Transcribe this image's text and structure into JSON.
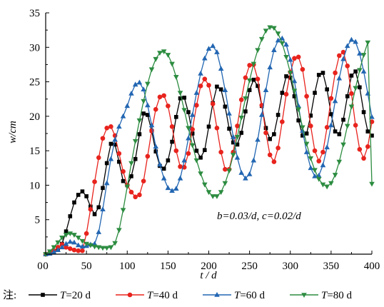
{
  "chart_data": {
    "type": "line",
    "xlabel": "t / d",
    "ylabel": "w/cm",
    "xlim": [
      0,
      400
    ],
    "ylim": [
      0,
      35
    ],
    "xticks": [
      0,
      50,
      100,
      150,
      200,
      250,
      300,
      350,
      400
    ],
    "yticks": [
      5,
      10,
      15,
      20,
      25,
      30,
      35
    ],
    "grid": false,
    "annotation": "b=0.03/d, c=0.02/d",
    "legend_prefix": "注:",
    "legend_position": "bottom",
    "series": [
      {
        "name": "T=20 d",
        "color": "#000000",
        "marker": "square",
        "x": [
          0,
          5,
          10,
          15,
          20,
          25,
          30,
          35,
          40,
          45,
          50,
          55,
          60,
          65,
          70,
          75,
          80,
          85,
          90,
          95,
          100,
          105,
          110,
          115,
          120,
          125,
          130,
          135,
          140,
          145,
          150,
          155,
          160,
          165,
          170,
          175,
          180,
          185,
          190,
          195,
          200,
          205,
          210,
          215,
          220,
          225,
          230,
          235,
          240,
          245,
          250,
          255,
          260,
          265,
          270,
          275,
          280,
          285,
          290,
          295,
          300,
          305,
          310,
          315,
          320,
          325,
          330,
          335,
          340,
          345,
          350,
          355,
          360,
          365,
          370,
          375,
          380,
          385,
          390,
          395,
          400
        ],
        "y": [
          0,
          0.1,
          0.3,
          0.8,
          1.5,
          3.3,
          5.5,
          7.5,
          8.6,
          9.1,
          8.4,
          6.9,
          5.8,
          6.8,
          9.6,
          13.2,
          16.0,
          15.9,
          13.4,
          10.6,
          10.0,
          11.3,
          13.8,
          17.4,
          20.4,
          20.2,
          17.9,
          14.9,
          12.8,
          12.4,
          13.6,
          16.3,
          19.9,
          22.6,
          22.7,
          20.6,
          17.5,
          15.0,
          14.0,
          15.1,
          18.5,
          21.9,
          24.3,
          23.9,
          21.4,
          18.2,
          16.2,
          15.9,
          17.6,
          20.7,
          23.8,
          25.3,
          24.4,
          21.5,
          18.3,
          16.7,
          17.4,
          20.2,
          23.4,
          25.8,
          25.6,
          22.9,
          19.4,
          17.2,
          17.5,
          20.1,
          23.4,
          26.0,
          26.3,
          23.9,
          20.3,
          17.8,
          17.4,
          19.5,
          22.9,
          25.9,
          26.5,
          24.2,
          20.6,
          17.8,
          17.2
        ]
      },
      {
        "name": "T=40 d",
        "color": "#e8231d",
        "marker": "circle",
        "x": [
          0,
          5,
          10,
          15,
          20,
          25,
          30,
          35,
          40,
          45,
          50,
          55,
          60,
          65,
          70,
          75,
          80,
          85,
          90,
          95,
          100,
          105,
          110,
          115,
          120,
          125,
          130,
          135,
          140,
          145,
          150,
          155,
          160,
          165,
          170,
          175,
          180,
          185,
          190,
          195,
          200,
          205,
          210,
          215,
          220,
          225,
          230,
          235,
          240,
          245,
          250,
          255,
          260,
          265,
          270,
          275,
          280,
          285,
          290,
          295,
          300,
          305,
          310,
          315,
          320,
          325,
          330,
          335,
          340,
          345,
          350,
          355,
          360,
          365,
          370,
          375,
          380,
          385,
          390,
          395,
          400
        ],
        "y": [
          0,
          0.2,
          0.5,
          1.0,
          1.4,
          1.0,
          0.8,
          0.6,
          0.5,
          0.5,
          3.0,
          6.5,
          10.5,
          14.0,
          16.8,
          18.3,
          18.5,
          17.2,
          14.6,
          12.0,
          10.0,
          9.0,
          8.3,
          8.6,
          10.6,
          14.2,
          17.9,
          21.0,
          22.8,
          23.0,
          21.5,
          18.5,
          15.0,
          12.7,
          12.6,
          14.6,
          18.1,
          21.6,
          24.4,
          25.4,
          24.5,
          21.8,
          18.3,
          14.8,
          12.3,
          12.3,
          14.8,
          18.6,
          22.4,
          25.6,
          27.4,
          27.5,
          25.4,
          21.6,
          17.6,
          14.4,
          13.4,
          15.4,
          19.2,
          23.2,
          26.4,
          28.4,
          28.6,
          26.8,
          22.9,
          18.6,
          15.0,
          13.5,
          14.8,
          18.4,
          22.6,
          26.3,
          28.8,
          29.3,
          27.3,
          23.3,
          18.7,
          15.2,
          13.9,
          15.6,
          19.2
        ]
      },
      {
        "name": "T=60 d",
        "color": "#2266b2",
        "marker": "triangle-up",
        "x": [
          0,
          5,
          10,
          15,
          20,
          25,
          30,
          35,
          40,
          45,
          50,
          55,
          60,
          65,
          70,
          75,
          80,
          85,
          90,
          95,
          100,
          105,
          110,
          115,
          120,
          125,
          130,
          135,
          140,
          145,
          150,
          155,
          160,
          165,
          170,
          175,
          180,
          185,
          190,
          195,
          200,
          205,
          210,
          215,
          220,
          225,
          230,
          235,
          240,
          245,
          250,
          255,
          260,
          265,
          270,
          275,
          280,
          285,
          290,
          295,
          300,
          305,
          310,
          315,
          320,
          325,
          330,
          335,
          340,
          345,
          350,
          355,
          360,
          365,
          370,
          375,
          380,
          385,
          390,
          395,
          400
        ],
        "y": [
          0,
          0.1,
          0.3,
          0.6,
          1.0,
          1.5,
          1.8,
          1.7,
          1.3,
          1.1,
          1.2,
          1.4,
          1.5,
          3.2,
          6.5,
          10.3,
          13.8,
          16.6,
          18.5,
          20.0,
          21.5,
          23.3,
          24.6,
          24.9,
          23.9,
          21.6,
          18.7,
          15.6,
          13.0,
          11.0,
          9.6,
          9.2,
          9.5,
          11.0,
          13.6,
          16.8,
          20.2,
          23.4,
          26.2,
          28.4,
          29.8,
          30.2,
          29.3,
          26.9,
          23.8,
          20.4,
          17.0,
          14.0,
          11.8,
          11.0,
          11.6,
          13.6,
          16.6,
          20.2,
          23.8,
          27.1,
          29.6,
          31.0,
          31.3,
          30.4,
          28.2,
          25.1,
          21.5,
          17.9,
          14.8,
          12.5,
          11.3,
          11.4,
          12.9,
          15.5,
          18.7,
          22.2,
          25.5,
          28.3,
          30.2,
          31.1,
          30.8,
          29.1,
          26.5,
          23.3,
          19.9
        ]
      },
      {
        "name": "T=80 d",
        "color": "#2c8c40",
        "marker": "triangle-down",
        "x": [
          0,
          5,
          10,
          15,
          20,
          25,
          30,
          35,
          40,
          45,
          50,
          55,
          60,
          65,
          70,
          75,
          80,
          85,
          90,
          95,
          100,
          105,
          110,
          115,
          120,
          125,
          130,
          135,
          140,
          145,
          150,
          155,
          160,
          165,
          170,
          175,
          180,
          185,
          190,
          195,
          200,
          205,
          210,
          215,
          220,
          225,
          230,
          235,
          240,
          245,
          250,
          255,
          260,
          265,
          270,
          275,
          280,
          285,
          290,
          295,
          300,
          305,
          310,
          315,
          320,
          325,
          330,
          335,
          340,
          345,
          350,
          355,
          360,
          365,
          370,
          375,
          380,
          385,
          390,
          395,
          400
        ],
        "y": [
          0,
          0.4,
          1.0,
          1.7,
          2.4,
          2.8,
          3.0,
          2.8,
          2.4,
          1.9,
          1.5,
          1.3,
          1.1,
          1.0,
          0.9,
          0.9,
          1.0,
          1.6,
          3.5,
          6.4,
          9.8,
          13.2,
          16.4,
          19.4,
          22.2,
          24.7,
          26.8,
          28.3,
          29.2,
          29.4,
          28.9,
          27.6,
          25.7,
          23.4,
          20.9,
          18.3,
          15.8,
          13.6,
          11.7,
          10.1,
          9.0,
          8.4,
          8.4,
          9.0,
          10.3,
          12.1,
          14.4,
          17.0,
          19.8,
          22.6,
          25.2,
          27.6,
          29.6,
          31.2,
          32.4,
          32.9,
          32.8,
          32.0,
          30.6,
          28.6,
          26.3,
          23.7,
          21.0,
          18.4,
          16.0,
          13.9,
          12.2,
          10.9,
          10.1,
          9.8,
          10.3,
          11.5,
          13.4,
          15.9,
          18.6,
          21.4,
          24.1,
          26.7,
          28.9,
          30.7,
          10.2
        ]
      }
    ]
  }
}
